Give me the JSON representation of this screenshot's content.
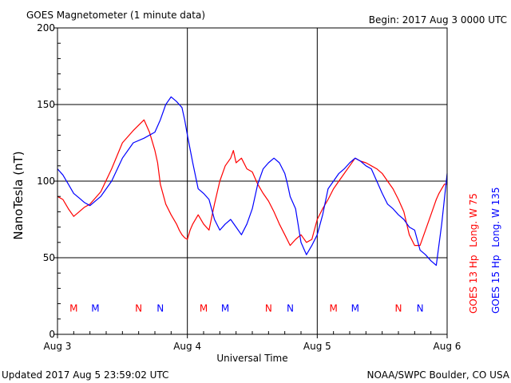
{
  "chart_data": {
    "type": "line",
    "title": "GOES Magnetometer (1 minute data)",
    "begin_label": "Begin:  2017 Aug 3 0000 UTC",
    "xlabel": "Universal Time",
    "ylabel": "NanoTesla (nT)",
    "updated_label": "Updated 2017 Aug  5 23:59:02 UTC",
    "source_label": "NOAA/SWPC Boulder, CO USA",
    "grid": true,
    "xlim": [
      0,
      72
    ],
    "ylim": [
      0,
      200
    ],
    "y_ticks": [
      0,
      50,
      100,
      150,
      200
    ],
    "x_ticks": [
      {
        "label": "Aug 3",
        "value": 0
      },
      {
        "label": "Aug 4",
        "value": 24
      },
      {
        "label": "Aug 5",
        "value": 48
      },
      {
        "label": "Aug 6",
        "value": 72
      }
    ],
    "series": [
      {
        "name": "GOES 13 Hp",
        "longitude_label": "Long. W 75",
        "color": "#ff0000",
        "x": [
          0,
          1,
          2,
          3,
          4,
          5,
          6,
          8,
          10,
          12,
          14,
          16,
          17,
          18,
          18.5,
          19,
          20,
          21,
          22,
          22.5,
          23,
          23.5,
          24,
          24.5,
          25,
          26,
          27,
          28,
          29,
          30,
          31,
          32,
          32.5,
          33,
          34,
          35,
          36,
          36.5,
          37,
          38,
          39,
          40,
          41,
          42,
          43,
          44,
          45,
          46,
          47,
          48,
          49,
          50,
          51,
          52,
          53,
          54,
          55,
          56,
          57,
          58,
          59,
          60,
          61,
          62,
          63,
          64,
          65,
          66,
          67,
          68,
          69,
          70,
          70.5,
          71,
          71.5,
          72
        ],
        "y": [
          90,
          88,
          82,
          77,
          80,
          83,
          85,
          93,
          108,
          125,
          133,
          140,
          132,
          120,
          112,
          98,
          85,
          78,
          72,
          68,
          65,
          63,
          62,
          68,
          72,
          78,
          72,
          68,
          85,
          100,
          110,
          115,
          120,
          112,
          115,
          108,
          106,
          102,
          98,
          92,
          87,
          80,
          72,
          65,
          58,
          62,
          65,
          60,
          62,
          75,
          82,
          88,
          95,
          100,
          105,
          110,
          115,
          113,
          112,
          110,
          108,
          105,
          100,
          95,
          88,
          80,
          65,
          58,
          58,
          68,
          78,
          88,
          92,
          95,
          98,
          98
        ]
      },
      {
        "name": "GOES 15 Hp",
        "longitude_label": "Long. W 135",
        "color": "#0000ff",
        "x": [
          0,
          1,
          2,
          3,
          4,
          5,
          6,
          8,
          10,
          12,
          14,
          16,
          18,
          19,
          20,
          21,
          22,
          22.5,
          23,
          23.5,
          24,
          25,
          26,
          27,
          28,
          29,
          30,
          31,
          32,
          33,
          34,
          35,
          36,
          37,
          38,
          39,
          40,
          41,
          42,
          42.5,
          43,
          44,
          45,
          46,
          47,
          48,
          49,
          50,
          51,
          52,
          53,
          54,
          55,
          56,
          57,
          58,
          59,
          60,
          61,
          62,
          63,
          64,
          65,
          66,
          67,
          68,
          69,
          70,
          71,
          72
        ],
        "y": [
          108,
          104,
          98,
          92,
          89,
          86,
          84,
          90,
          100,
          115,
          125,
          128,
          132,
          140,
          150,
          155,
          152,
          150,
          148,
          140,
          130,
          112,
          95,
          92,
          88,
          75,
          68,
          72,
          75,
          70,
          65,
          72,
          82,
          98,
          108,
          112,
          115,
          112,
          105,
          98,
          90,
          82,
          60,
          52,
          58,
          65,
          78,
          95,
          100,
          105,
          108,
          112,
          115,
          113,
          110,
          108,
          100,
          92,
          85,
          82,
          78,
          75,
          70,
          68,
          55,
          52,
          48,
          45,
          72,
          105
        ]
      }
    ],
    "markers": [
      {
        "letter": "M",
        "x": 3.0,
        "color": "#ff0000"
      },
      {
        "letter": "M",
        "x": 7.0,
        "color": "#0000ff"
      },
      {
        "letter": "N",
        "x": 15.0,
        "color": "#ff0000"
      },
      {
        "letter": "N",
        "x": 19.0,
        "color": "#0000ff"
      },
      {
        "letter": "M",
        "x": 27.0,
        "color": "#ff0000"
      },
      {
        "letter": "M",
        "x": 31.0,
        "color": "#0000ff"
      },
      {
        "letter": "N",
        "x": 39.0,
        "color": "#ff0000"
      },
      {
        "letter": "N",
        "x": 43.0,
        "color": "#0000ff"
      },
      {
        "letter": "M",
        "x": 51.0,
        "color": "#ff0000"
      },
      {
        "letter": "M",
        "x": 55.0,
        "color": "#0000ff"
      },
      {
        "letter": "N",
        "x": 63.0,
        "color": "#ff0000"
      },
      {
        "letter": "N",
        "x": 67.0,
        "color": "#0000ff"
      }
    ],
    "marker_y": 17
  }
}
